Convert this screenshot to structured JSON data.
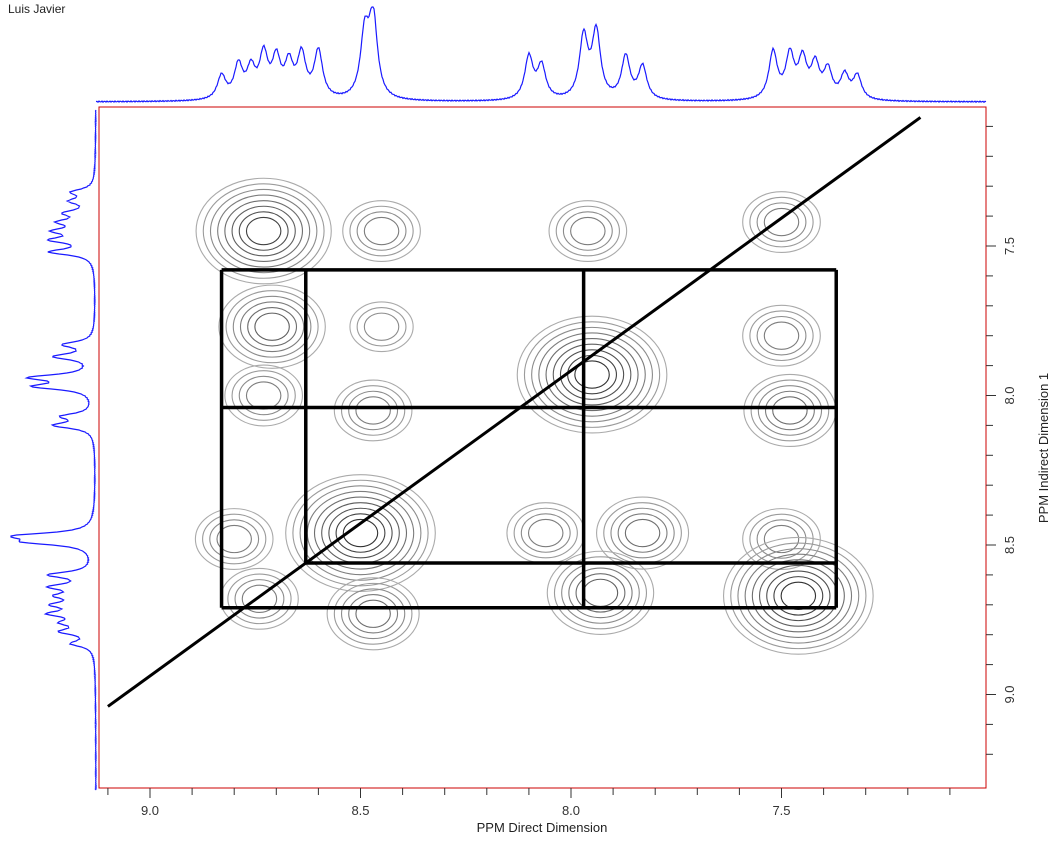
{
  "header": {
    "author": "Luis Javier",
    "title": ""
  },
  "chart_data": {
    "type": "heatmap",
    "subtype": "2D NMR contour plot (COSY-style) with 1D projections and assignment walk",
    "title": "",
    "xlabel": "PPM Direct Dimension",
    "ylabel": "PPM Indirect Dimension 1",
    "x_axis": {
      "reversed": true,
      "range": [
        9.2,
        7.1
      ],
      "ticks": [
        9.0,
        8.5,
        8.0,
        7.5
      ],
      "tick_labels": [
        "9.0",
        "8.5",
        "8.0",
        "7.5"
      ]
    },
    "y_axis": {
      "reversed": true,
      "position": "right",
      "range": [
        7.06,
        9.24
      ],
      "ticks": [
        7.5,
        8.0,
        8.5,
        9.0
      ],
      "tick_labels": [
        "7.5",
        "8.0",
        "8.5",
        "9.0"
      ]
    },
    "frame_color": "#cc0000",
    "projection_color": "#1a1aff",
    "diagonal": {
      "from": [
        9.1,
        9.04
      ],
      "to": [
        7.17,
        7.07
      ]
    },
    "peaks": [
      {
        "x": 8.73,
        "y": 7.45,
        "intensity": 8
      },
      {
        "x": 8.45,
        "y": 7.45,
        "intensity": 4
      },
      {
        "x": 7.96,
        "y": 7.45,
        "intensity": 4
      },
      {
        "x": 7.5,
        "y": 7.42,
        "intensity": 4
      },
      {
        "x": 8.71,
        "y": 7.77,
        "intensity": 6
      },
      {
        "x": 8.45,
        "y": 7.77,
        "intensity": 3
      },
      {
        "x": 7.95,
        "y": 7.93,
        "intensity": 9
      },
      {
        "x": 7.5,
        "y": 7.8,
        "intensity": 4
      },
      {
        "x": 8.73,
        "y": 8.0,
        "intensity": 4
      },
      {
        "x": 8.47,
        "y": 8.05,
        "intensity": 4
      },
      {
        "x": 7.48,
        "y": 8.05,
        "intensity": 5
      },
      {
        "x": 8.8,
        "y": 8.48,
        "intensity": 4
      },
      {
        "x": 8.5,
        "y": 8.46,
        "intensity": 9
      },
      {
        "x": 8.06,
        "y": 8.46,
        "intensity": 4
      },
      {
        "x": 7.83,
        "y": 8.46,
        "intensity": 5
      },
      {
        "x": 7.5,
        "y": 8.48,
        "intensity": 4
      },
      {
        "x": 7.46,
        "y": 8.67,
        "intensity": 9
      },
      {
        "x": 8.74,
        "y": 8.68,
        "intensity": 4
      },
      {
        "x": 7.93,
        "y": 8.66,
        "intensity": 6
      },
      {
        "x": 8.47,
        "y": 8.73,
        "intensity": 5
      }
    ],
    "walk_lines": [
      {
        "from": [
          8.83,
          7.58
        ],
        "to": [
          7.37,
          7.58
        ]
      },
      {
        "from": [
          8.83,
          8.04
        ],
        "to": [
          7.37,
          8.04
        ]
      },
      {
        "from": [
          8.63,
          8.56
        ],
        "to": [
          7.37,
          8.56
        ]
      },
      {
        "from": [
          8.83,
          8.71
        ],
        "to": [
          7.37,
          8.71
        ]
      },
      {
        "from": [
          8.83,
          7.58
        ],
        "to": [
          8.83,
          8.71
        ]
      },
      {
        "from": [
          8.63,
          7.58
        ],
        "to": [
          8.63,
          8.56
        ]
      },
      {
        "from": [
          7.97,
          7.58
        ],
        "to": [
          7.97,
          8.71
        ]
      },
      {
        "from": [
          7.37,
          7.58
        ],
        "to": [
          7.37,
          8.71
        ]
      }
    ],
    "projection_peaks": [
      {
        "ppm": 8.83,
        "height": 0.25
      },
      {
        "ppm": 8.79,
        "height": 0.35
      },
      {
        "ppm": 8.76,
        "height": 0.3
      },
      {
        "ppm": 8.73,
        "height": 0.45
      },
      {
        "ppm": 8.7,
        "height": 0.4
      },
      {
        "ppm": 8.67,
        "height": 0.35
      },
      {
        "ppm": 8.64,
        "height": 0.45
      },
      {
        "ppm": 8.6,
        "height": 0.5
      },
      {
        "ppm": 8.49,
        "height": 0.65
      },
      {
        "ppm": 8.47,
        "height": 0.85
      },
      {
        "ppm": 8.1,
        "height": 0.45
      },
      {
        "ppm": 8.07,
        "height": 0.35
      },
      {
        "ppm": 7.97,
        "height": 0.65
      },
      {
        "ppm": 7.94,
        "height": 0.7
      },
      {
        "ppm": 7.87,
        "height": 0.45
      },
      {
        "ppm": 7.83,
        "height": 0.35
      },
      {
        "ppm": 7.52,
        "height": 0.5
      },
      {
        "ppm": 7.48,
        "height": 0.45
      },
      {
        "ppm": 7.45,
        "height": 0.4
      },
      {
        "ppm": 7.42,
        "height": 0.35
      },
      {
        "ppm": 7.39,
        "height": 0.3
      },
      {
        "ppm": 7.35,
        "height": 0.25
      },
      {
        "ppm": 7.32,
        "height": 0.25
      }
    ]
  }
}
